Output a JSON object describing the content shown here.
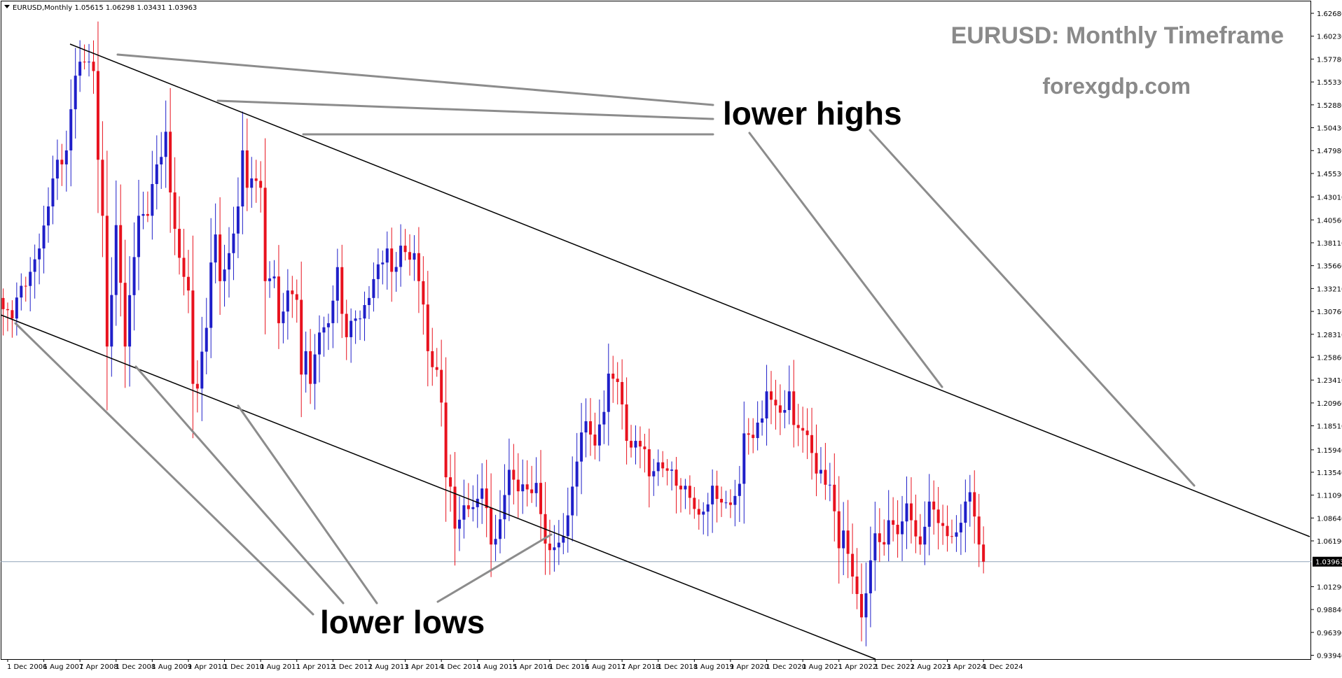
{
  "header": {
    "symbol_info": "EURUSD,Monthly  1.05615 1.06298 1.03431 1.03963"
  },
  "watermark": {
    "title": "EURUSD: Monthly Timeframe",
    "site": "forexgdp.com"
  },
  "annotations": {
    "lower_highs": "lower highs",
    "lower_lows": "lower lows"
  },
  "price_label": "1.03963",
  "colors": {
    "bull": "#1f1fc9",
    "bear": "#e8121e",
    "trendline": "#000000",
    "pointer": "#8c8c8c",
    "price_line": "#8fa3b8",
    "price_box": "#000000"
  },
  "chart_data": {
    "type": "candlestick",
    "title": "EURUSD: Monthly Timeframe",
    "symbol": "EURUSD",
    "timeframe": "Monthly",
    "ylim": [
      0.9353,
      1.6403
    ],
    "y_ticks": [
      "1.62680",
      "1.60230",
      "1.57780",
      "1.55330",
      "1.52880",
      "1.50430",
      "1.47980",
      "1.45530",
      "1.43010",
      "1.40560",
      "1.38110",
      "1.35660",
      "1.33210",
      "1.30760",
      "1.28310",
      "1.25860",
      "1.23410",
      "1.20960",
      "1.18510",
      "1.15940",
      "1.13540",
      "1.11090",
      "1.08640",
      "1.06190",
      "1.03963",
      "1.01290",
      "0.98840",
      "0.96390",
      "0.93940"
    ],
    "x_ticks": [
      "1 Dec 2006",
      "1 Aug 2007",
      "1 Apr 2008",
      "1 Dec 2008",
      "1 Aug 2009",
      "1 Apr 2010",
      "1 Dec 2010",
      "1 Aug 2011",
      "1 Apr 2012",
      "1 Dec 2012",
      "1 Aug 2013",
      "1 Apr 2014",
      "1 Dec 2014",
      "1 Aug 2015",
      "1 Apr 2016",
      "1 Dec 2016",
      "1 Aug 2017",
      "1 Apr 2018",
      "1 Dec 2018",
      "1 Aug 2019",
      "1 Apr 2020",
      "1 Dec 2020",
      "1 Aug 2021",
      "1 Apr 2022",
      "1 Dec 2022",
      "1 Aug 2023",
      "1 Apr 2024",
      "1 Dec 2024"
    ],
    "current_price": 1.03963,
    "anchors": [
      [
        "2006-11",
        1.31
      ],
      [
        "2007-01",
        1.3
      ],
      [
        "2007-03",
        1.335
      ],
      [
        "2007-05",
        1.35
      ],
      [
        "2007-07",
        1.375
      ],
      [
        "2007-09",
        1.42
      ],
      [
        "2007-11",
        1.47
      ],
      [
        "2008-01",
        1.48
      ],
      [
        "2008-03",
        1.56
      ],
      [
        "2008-04",
        1.575
      ],
      [
        "2008-06",
        1.575
      ],
      [
        "2008-07",
        1.565
      ],
      [
        "2008-08",
        1.47
      ],
      [
        "2008-09",
        1.41
      ],
      [
        "2008-10",
        1.27
      ],
      [
        "2008-12",
        1.4
      ],
      [
        "2009-02",
        1.27
      ],
      [
        "2009-03",
        1.325
      ],
      [
        "2009-05",
        1.41
      ],
      [
        "2009-07",
        1.41
      ],
      [
        "2009-09",
        1.465
      ],
      [
        "2009-11",
        1.5
      ],
      [
        "2009-12",
        1.435
      ],
      [
        "2010-02",
        1.365
      ],
      [
        "2010-04",
        1.33
      ],
      [
        "2010-05",
        1.23
      ],
      [
        "2010-06",
        1.225
      ],
      [
        "2010-08",
        1.29
      ],
      [
        "2010-09",
        1.36
      ],
      [
        "2010-10",
        1.39
      ],
      [
        "2010-11",
        1.34
      ],
      [
        "2011-01",
        1.37
      ],
      [
        "2011-03",
        1.42
      ],
      [
        "2011-04",
        1.48
      ],
      [
        "2011-05",
        1.44
      ],
      [
        "2011-06",
        1.45
      ],
      [
        "2011-08",
        1.44
      ],
      [
        "2011-09",
        1.34
      ],
      [
        "2011-11",
        1.345
      ],
      [
        "2011-12",
        1.295
      ],
      [
        "2012-02",
        1.33
      ],
      [
        "2012-04",
        1.32
      ],
      [
        "2012-05",
        1.24
      ],
      [
        "2012-06",
        1.265
      ],
      [
        "2012-07",
        1.23
      ],
      [
        "2012-09",
        1.285
      ],
      [
        "2012-11",
        1.295
      ],
      [
        "2013-01",
        1.355
      ],
      [
        "2013-02",
        1.305
      ],
      [
        "2013-03",
        1.28
      ],
      [
        "2013-05",
        1.3
      ],
      [
        "2013-06",
        1.3
      ],
      [
        "2013-08",
        1.322
      ],
      [
        "2013-10",
        1.358
      ],
      [
        "2013-12",
        1.375
      ],
      [
        "2014-01",
        1.35
      ],
      [
        "2014-03",
        1.378
      ],
      [
        "2014-05",
        1.363
      ],
      [
        "2014-06",
        1.37
      ],
      [
        "2014-07",
        1.34
      ],
      [
        "2014-08",
        1.315
      ],
      [
        "2014-09",
        1.265
      ],
      [
        "2014-11",
        1.245
      ],
      [
        "2014-12",
        1.21
      ],
      [
        "2015-01",
        1.13
      ],
      [
        "2015-02",
        1.12
      ],
      [
        "2015-03",
        1.075
      ],
      [
        "2015-05",
        1.1
      ],
      [
        "2015-07",
        1.098
      ],
      [
        "2015-09",
        1.118
      ],
      [
        "2015-11",
        1.058
      ],
      [
        "2016-01",
        1.085
      ],
      [
        "2016-03",
        1.138
      ],
      [
        "2016-05",
        1.115
      ],
      [
        "2016-07",
        1.117
      ],
      [
        "2016-09",
        1.124
      ],
      [
        "2016-11",
        1.059
      ],
      [
        "2016-12",
        1.052
      ],
      [
        "2017-02",
        1.06
      ],
      [
        "2017-03",
        1.067
      ],
      [
        "2017-05",
        1.12
      ],
      [
        "2017-07",
        1.178
      ],
      [
        "2017-08",
        1.19
      ],
      [
        "2017-10",
        1.164
      ],
      [
        "2017-12",
        1.2
      ],
      [
        "2018-01",
        1.241
      ],
      [
        "2018-03",
        1.232
      ],
      [
        "2018-04",
        1.208
      ],
      [
        "2018-05",
        1.169
      ],
      [
        "2018-07",
        1.169
      ],
      [
        "2018-09",
        1.16
      ],
      [
        "2018-10",
        1.131
      ],
      [
        "2018-12",
        1.146
      ],
      [
        "2019-02",
        1.137
      ],
      [
        "2019-04",
        1.121
      ],
      [
        "2019-05",
        1.117
      ],
      [
        "2019-07",
        1.108
      ],
      [
        "2019-09",
        1.09
      ],
      [
        "2019-11",
        1.101
      ],
      [
        "2019-12",
        1.121
      ],
      [
        "2020-02",
        1.103
      ],
      [
        "2020-03",
        1.103
      ],
      [
        "2020-05",
        1.11
      ],
      [
        "2020-06",
        1.123
      ],
      [
        "2020-07",
        1.177
      ],
      [
        "2020-09",
        1.172
      ],
      [
        "2020-11",
        1.193
      ],
      [
        "2020-12",
        1.222
      ],
      [
        "2021-01",
        1.213
      ],
      [
        "2021-02",
        1.207
      ],
      [
        "2021-04",
        1.202
      ],
      [
        "2021-05",
        1.222
      ],
      [
        "2021-06",
        1.186
      ],
      [
        "2021-08",
        1.18
      ],
      [
        "2021-10",
        1.156
      ],
      [
        "2021-11",
        1.134
      ],
      [
        "2022-01",
        1.122
      ],
      [
        "2022-02",
        1.122
      ],
      [
        "2022-04",
        1.054
      ],
      [
        "2022-05",
        1.073
      ],
      [
        "2022-06",
        1.048
      ],
      [
        "2022-08",
        1.005
      ],
      [
        "2022-09",
        0.98
      ],
      [
        "2022-11",
        1.041
      ],
      [
        "2022-12",
        1.07
      ],
      [
        "2023-02",
        1.058
      ],
      [
        "2023-03",
        1.084
      ],
      [
        "2023-05",
        1.069
      ],
      [
        "2023-07",
        1.102
      ],
      [
        "2023-08",
        1.084
      ],
      [
        "2023-10",
        1.058
      ],
      [
        "2023-12",
        1.104
      ],
      [
        "2024-02",
        1.081
      ],
      [
        "2024-04",
        1.067
      ],
      [
        "2024-06",
        1.071
      ],
      [
        "2024-08",
        1.104
      ],
      [
        "2024-09",
        1.114
      ],
      [
        "2024-10",
        1.088
      ],
      [
        "2024-11",
        1.058
      ],
      [
        "2024-12",
        1.04
      ]
    ]
  }
}
